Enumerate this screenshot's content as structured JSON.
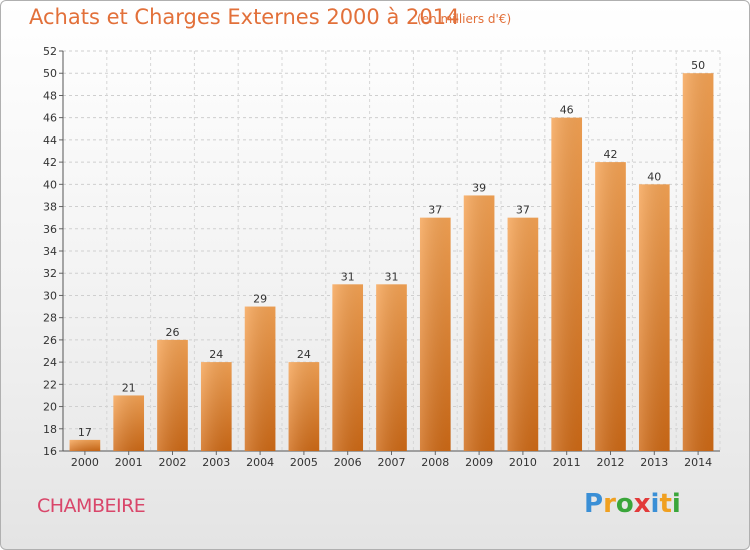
{
  "chart_data": {
    "type": "bar",
    "title": "Achats et Charges Externes 2000 à 2014",
    "subtitle": "(en milliers d'€)",
    "xlabel": "",
    "ylabel": "",
    "categories": [
      "2000",
      "2001",
      "2002",
      "2003",
      "2004",
      "2005",
      "2006",
      "2007",
      "2008",
      "2009",
      "2010",
      "2011",
      "2012",
      "2013",
      "2014"
    ],
    "values": [
      17,
      21,
      26,
      24,
      29,
      24,
      31,
      31,
      37,
      39,
      37,
      46,
      42,
      40,
      50
    ],
    "ylim": [
      16,
      52
    ],
    "yticks": [
      16,
      18,
      20,
      22,
      24,
      26,
      28,
      30,
      32,
      34,
      36,
      38,
      40,
      42,
      44,
      46,
      48,
      50,
      52
    ],
    "grid": true,
    "bar_color": "#f0913f"
  },
  "location": "CHAMBEIRE",
  "logo": {
    "text": "Proxiti",
    "letters": [
      "P",
      "r",
      "o",
      "x",
      "i",
      "t",
      "i"
    ],
    "colors": [
      "#3a8fd6",
      "#f0a020",
      "#3aa63a",
      "#e23a3a",
      "#3a8fd6",
      "#f0a020",
      "#3aa63a"
    ]
  }
}
